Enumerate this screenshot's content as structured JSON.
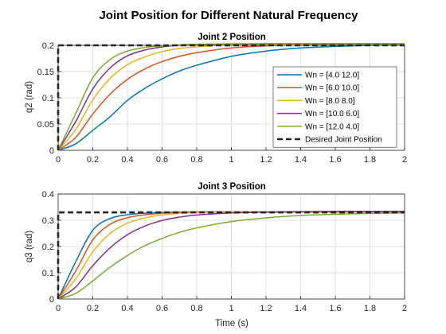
{
  "figure_title": "Joint Position for Different Natural Frequency",
  "chart_data": [
    {
      "type": "line",
      "title": "Joint 2 Position",
      "xlabel": "",
      "ylabel": "q2 (rad)",
      "xlim": [
        0,
        2
      ],
      "ylim": [
        0,
        0.2
      ],
      "xticks": [
        "0",
        "0.2",
        "0.4",
        "0.6",
        "0.8",
        "1",
        "1.2",
        "1.4",
        "1.6",
        "1.8",
        "2"
      ],
      "yticks": [
        "0",
        "0.05",
        "0.1",
        "0.15",
        "0.2"
      ],
      "grid": true,
      "legend_position": "right",
      "x": [
        0,
        0.1,
        0.2,
        0.3,
        0.4,
        0.5,
        0.6,
        0.7,
        0.8,
        1.0,
        1.2,
        1.4,
        1.6,
        1.8,
        2.0
      ],
      "series": [
        {
          "name": "Wn = [4.0 12.0]",
          "color": "#0072BD",
          "values": [
            0,
            0.012,
            0.038,
            0.064,
            0.095,
            0.118,
            0.136,
            0.151,
            0.162,
            0.179,
            0.189,
            0.195,
            0.198,
            0.2,
            0.201
          ]
        },
        {
          "name": "Wn = [6.0 10.0]",
          "color": "#D95319",
          "values": [
            0,
            0.024,
            0.069,
            0.107,
            0.135,
            0.155,
            0.169,
            0.179,
            0.186,
            0.195,
            0.199,
            0.201,
            0.202,
            0.202,
            0.202
          ]
        },
        {
          "name": "Wn = [8.0 8.0]",
          "color": "#EDB120",
          "values": [
            0,
            0.039,
            0.096,
            0.137,
            0.163,
            0.178,
            0.188,
            0.194,
            0.197,
            0.201,
            0.202,
            0.202,
            0.203,
            0.203,
            0.203
          ]
        },
        {
          "name": "Wn = [10.0 6.0]",
          "color": "#7E2F8E",
          "values": [
            0,
            0.054,
            0.117,
            0.157,
            0.18,
            0.191,
            0.197,
            0.2,
            0.201,
            0.202,
            0.203,
            0.203,
            0.203,
            0.203,
            0.203
          ]
        },
        {
          "name": "Wn = [12.0 4.0]",
          "color": "#77AC30",
          "values": [
            0,
            0.069,
            0.138,
            0.173,
            0.189,
            0.196,
            0.199,
            0.201,
            0.202,
            0.203,
            0.203,
            0.203,
            0.203,
            0.203,
            0.203
          ]
        }
      ],
      "reference": {
        "name": "Desired Joint Position",
        "color": "#262626",
        "x": [
          0,
          0,
          2
        ],
        "values": [
          0,
          0.2,
          0.2
        ]
      }
    },
    {
      "type": "line",
      "title": "Joint 3 Position",
      "xlabel": "Time (s)",
      "ylabel": "q3 (rad)",
      "xlim": [
        0,
        2
      ],
      "ylim": [
        0,
        0.4
      ],
      "xticks": [
        "0",
        "0.2",
        "0.4",
        "0.6",
        "0.8",
        "1",
        "1.2",
        "1.4",
        "1.6",
        "1.8",
        "2"
      ],
      "yticks": [
        "0",
        "0.1",
        "0.2",
        "0.3",
        "0.4"
      ],
      "grid": true,
      "x": [
        0,
        0.1,
        0.2,
        0.3,
        0.4,
        0.5,
        0.6,
        0.7,
        0.8,
        1.0,
        1.2,
        1.4,
        1.6,
        1.8,
        2.0
      ],
      "series": [
        {
          "name": "Wn = [4.0 12.0]",
          "color": "#0072BD",
          "values": [
            0,
            0.14,
            0.262,
            0.307,
            0.321,
            0.327,
            0.33,
            0.331,
            0.332,
            0.332,
            0.332,
            0.332,
            0.332,
            0.332,
            0.332
          ]
        },
        {
          "name": "Wn = [6.0 10.0]",
          "color": "#D95319",
          "values": [
            0,
            0.105,
            0.225,
            0.285,
            0.31,
            0.321,
            0.327,
            0.33,
            0.331,
            0.332,
            0.332,
            0.332,
            0.332,
            0.332,
            0.332
          ]
        },
        {
          "name": "Wn = [8.0 8.0]",
          "color": "#EDB120",
          "values": [
            0,
            0.075,
            0.18,
            0.25,
            0.289,
            0.309,
            0.32,
            0.326,
            0.329,
            0.332,
            0.332,
            0.332,
            0.332,
            0.332,
            0.332
          ]
        },
        {
          "name": "Wn = [10.0 6.0]",
          "color": "#7E2F8E",
          "values": [
            0,
            0.045,
            0.127,
            0.195,
            0.245,
            0.278,
            0.299,
            0.312,
            0.32,
            0.328,
            0.331,
            0.333,
            0.334,
            0.334,
            0.334
          ]
        },
        {
          "name": "Wn = [12.0 4.0]",
          "color": "#77AC30",
          "values": [
            0,
            0.021,
            0.069,
            0.121,
            0.166,
            0.203,
            0.231,
            0.254,
            0.271,
            0.295,
            0.309,
            0.318,
            0.323,
            0.326,
            0.328
          ]
        }
      ],
      "reference": {
        "name": "Desired Joint Position",
        "color": "#262626",
        "x": [
          0,
          0,
          2
        ],
        "values": [
          0,
          0.33,
          0.33
        ]
      }
    }
  ]
}
